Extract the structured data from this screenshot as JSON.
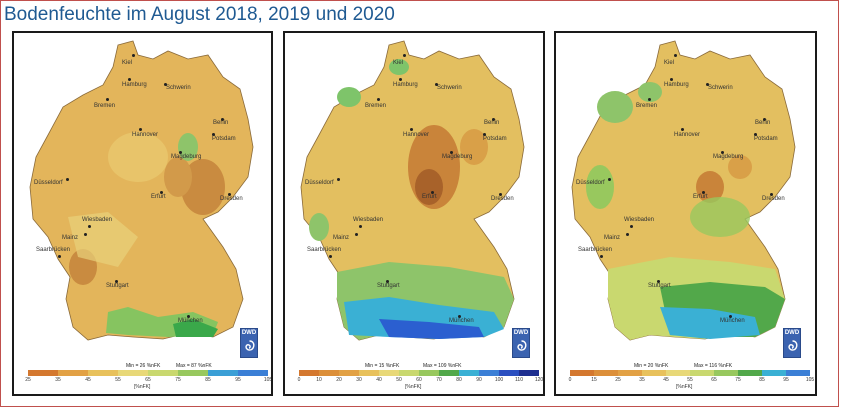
{
  "title": "Bodenfeuchte im August 2018, 2019 und 2020",
  "maps": [
    {
      "year": "2018",
      "stats": {
        "min": "Min = 26 %nFK",
        "max": "Max = 87 %nFK"
      },
      "legend": {
        "ticks": [
          "25",
          "35",
          "45",
          "55",
          "65",
          "75",
          "85",
          "95",
          "105"
        ],
        "unit": "[%nFK]"
      }
    },
    {
      "year": "2019",
      "stats": {
        "min": "Min = 15 %nFK",
        "max": "Max = 109 %nFK"
      },
      "legend": {
        "ticks": [
          "0",
          "10",
          "20",
          "30",
          "40",
          "50",
          "60",
          "70",
          "80",
          "90",
          "100",
          "110",
          "120"
        ],
        "unit": "[%nFK]"
      }
    },
    {
      "year": "2020",
      "stats": {
        "min": "Min = 20 %nFK",
        "max": "Max = 116 %nFK"
      },
      "legend": {
        "ticks": [
          "0",
          "15",
          "25",
          "35",
          "45",
          "55",
          "65",
          "75",
          "85",
          "95",
          "105"
        ],
        "unit": "[%nFK]"
      }
    }
  ],
  "cities": [
    "Kiel",
    "Hamburg",
    "Schwerin",
    "Bremen",
    "Berlin",
    "Hannover",
    "Potsdam",
    "Magdeburg",
    "Düsseldorf",
    "Erfurt",
    "Dresden",
    "Wiesbaden",
    "Mainz",
    "Saarbrücken",
    "Stuttgart",
    "München"
  ],
  "logo": {
    "text": "DWD"
  },
  "colors": {
    "frame": "#c0504d",
    "title": "#1f5a92",
    "legend_scale": [
      "#d4782f",
      "#e2a145",
      "#e8c15c",
      "#e8d878",
      "#c9d86f",
      "#98c85e",
      "#52a84a",
      "#2f9db8",
      "#3b7fd6"
    ]
  }
}
